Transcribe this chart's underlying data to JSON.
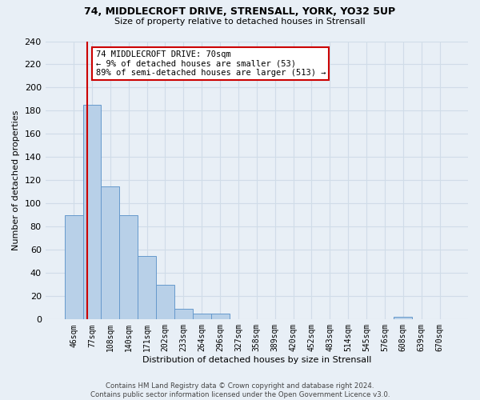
{
  "title1": "74, MIDDLECROFT DRIVE, STRENSALL, YORK, YO32 5UP",
  "title2": "Size of property relative to detached houses in Strensall",
  "xlabel": "Distribution of detached houses by size in Strensall",
  "ylabel": "Number of detached properties",
  "bar_labels": [
    "46sqm",
    "77sqm",
    "108sqm",
    "140sqm",
    "171sqm",
    "202sqm",
    "233sqm",
    "264sqm",
    "296sqm",
    "327sqm",
    "358sqm",
    "389sqm",
    "420sqm",
    "452sqm",
    "483sqm",
    "514sqm",
    "545sqm",
    "576sqm",
    "608sqm",
    "639sqm",
    "670sqm"
  ],
  "bar_heights": [
    90,
    185,
    115,
    90,
    55,
    30,
    9,
    5,
    5,
    0,
    0,
    0,
    0,
    0,
    0,
    0,
    0,
    0,
    2,
    0,
    0
  ],
  "bar_color": "#b8d0e8",
  "bar_edge_color": "#6699cc",
  "annotation_box_text": "74 MIDDLECROFT DRIVE: 70sqm\n← 9% of detached houses are smaller (53)\n89% of semi-detached houses are larger (513) →",
  "annotation_box_color": "#ffffff",
  "annotation_box_edge_color": "#cc0000",
  "vline_color": "#cc0000",
  "vline_x": 0.72,
  "bg_color": "#e8eff6",
  "grid_color": "#d0dce8",
  "footer_text": "Contains HM Land Registry data © Crown copyright and database right 2024.\nContains public sector information licensed under the Open Government Licence v3.0.",
  "ylim": [
    0,
    240
  ],
  "yticks": [
    0,
    20,
    40,
    60,
    80,
    100,
    120,
    140,
    160,
    180,
    200,
    220,
    240
  ],
  "anno_fontsize": 7.5,
  "title1_fontsize": 9,
  "title2_fontsize": 8,
  "ylabel_fontsize": 8,
  "xlabel_fontsize": 8
}
